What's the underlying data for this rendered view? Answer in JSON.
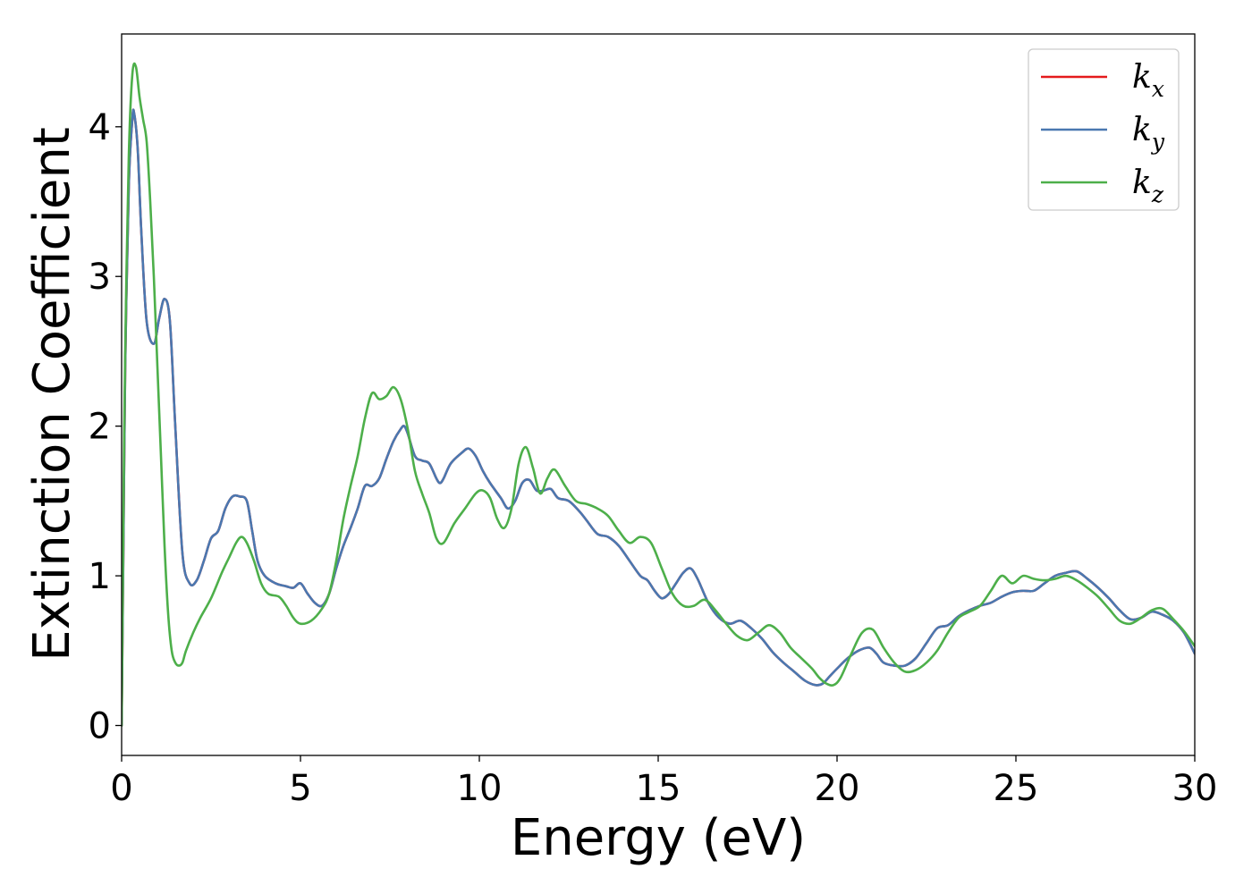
{
  "chart_data": {
    "type": "line",
    "xlabel": "Energy (eV)",
    "ylabel": "Extinction Coefficient",
    "xlim": [
      0,
      30
    ],
    "ylim": [
      -0.2,
      4.62
    ],
    "xticks": [
      0,
      5,
      10,
      15,
      20,
      25,
      30
    ],
    "yticks": [
      0,
      1,
      2,
      3,
      4
    ],
    "xtick_labels": [
      "0",
      "5",
      "10",
      "15",
      "20",
      "25",
      "30"
    ],
    "ytick_labels": [
      "0",
      "1",
      "2",
      "3",
      "4"
    ],
    "grid": false,
    "legend_position": "top-right",
    "series": [
      {
        "name": "k_x",
        "label_base": "k",
        "label_sub": "x",
        "color": "#e41a1c",
        "x": [
          0,
          0.05,
          0.1,
          0.2,
          0.3,
          0.35,
          0.45,
          0.55,
          0.7,
          0.9,
          1.05,
          1.2,
          1.35,
          1.5,
          1.7,
          1.9,
          2.1,
          2.3,
          2.5,
          2.7,
          2.9,
          3.1,
          3.3,
          3.5,
          3.65,
          3.8,
          4.0,
          4.3,
          4.6,
          4.8,
          5.0,
          5.2,
          5.4,
          5.6,
          5.8,
          6.0,
          6.2,
          6.4,
          6.6,
          6.8,
          7.0,
          7.2,
          7.4,
          7.6,
          7.8,
          7.9,
          8.0,
          8.2,
          8.4,
          8.6,
          8.8,
          8.9,
          9.0,
          9.2,
          9.5,
          9.7,
          9.9,
          10.1,
          10.3,
          10.6,
          10.8,
          11.0,
          11.2,
          11.4,
          11.6,
          11.8,
          12.0,
          12.2,
          12.5,
          12.8,
          13.0,
          13.3,
          13.6,
          13.9,
          14.2,
          14.5,
          14.7,
          14.9,
          15.1,
          15.3,
          15.5,
          15.7,
          15.9,
          16.1,
          16.4,
          16.7,
          17.0,
          17.3,
          17.6,
          17.9,
          18.2,
          18.5,
          18.8,
          19.1,
          19.4,
          19.6,
          19.8,
          20.0,
          20.3,
          20.6,
          20.9,
          21.1,
          21.3,
          21.6,
          21.9,
          22.2,
          22.5,
          22.8,
          23.1,
          23.4,
          23.7,
          24.0,
          24.3,
          24.6,
          24.9,
          25.2,
          25.5,
          25.8,
          26.1,
          26.4,
          26.7,
          27.0,
          27.3,
          27.6,
          27.9,
          28.2,
          28.5,
          28.8,
          29.1,
          29.4,
          29.7,
          30.0
        ],
        "y": [
          0,
          1.2,
          2.4,
          3.6,
          4.05,
          4.09,
          3.85,
          3.3,
          2.7,
          2.55,
          2.72,
          2.85,
          2.7,
          2.0,
          1.15,
          0.95,
          0.97,
          1.1,
          1.25,
          1.3,
          1.45,
          1.53,
          1.53,
          1.5,
          1.3,
          1.1,
          1.0,
          0.95,
          0.93,
          0.92,
          0.95,
          0.88,
          0.82,
          0.8,
          0.88,
          1.05,
          1.2,
          1.32,
          1.45,
          1.6,
          1.6,
          1.65,
          1.78,
          1.9,
          1.98,
          2.0,
          1.95,
          1.8,
          1.77,
          1.75,
          1.65,
          1.62,
          1.65,
          1.75,
          1.82,
          1.85,
          1.8,
          1.7,
          1.62,
          1.52,
          1.45,
          1.5,
          1.62,
          1.64,
          1.57,
          1.57,
          1.58,
          1.52,
          1.5,
          1.43,
          1.37,
          1.28,
          1.26,
          1.2,
          1.1,
          1.0,
          0.97,
          0.9,
          0.85,
          0.88,
          0.95,
          1.02,
          1.05,
          0.98,
          0.82,
          0.72,
          0.68,
          0.7,
          0.65,
          0.58,
          0.49,
          0.42,
          0.36,
          0.3,
          0.27,
          0.28,
          0.33,
          0.38,
          0.45,
          0.5,
          0.52,
          0.48,
          0.42,
          0.4,
          0.4,
          0.45,
          0.55,
          0.65,
          0.67,
          0.73,
          0.77,
          0.8,
          0.82,
          0.86,
          0.89,
          0.9,
          0.9,
          0.95,
          1.0,
          1.02,
          1.03,
          0.98,
          0.92,
          0.85,
          0.77,
          0.71,
          0.72,
          0.76,
          0.74,
          0.7,
          0.62,
          0.48
        ]
      },
      {
        "name": "k_y",
        "label_base": "k",
        "label_sub": "y",
        "color": "#4a78b0",
        "x": [
          0,
          0.05,
          0.1,
          0.2,
          0.3,
          0.35,
          0.45,
          0.55,
          0.7,
          0.9,
          1.05,
          1.2,
          1.35,
          1.5,
          1.7,
          1.9,
          2.1,
          2.3,
          2.5,
          2.7,
          2.9,
          3.1,
          3.3,
          3.5,
          3.65,
          3.8,
          4.0,
          4.3,
          4.6,
          4.8,
          5.0,
          5.2,
          5.4,
          5.6,
          5.8,
          6.0,
          6.2,
          6.4,
          6.6,
          6.8,
          7.0,
          7.2,
          7.4,
          7.6,
          7.8,
          7.9,
          8.0,
          8.2,
          8.4,
          8.6,
          8.8,
          8.9,
          9.0,
          9.2,
          9.5,
          9.7,
          9.9,
          10.1,
          10.3,
          10.6,
          10.8,
          11.0,
          11.2,
          11.4,
          11.6,
          11.8,
          12.0,
          12.2,
          12.5,
          12.8,
          13.0,
          13.3,
          13.6,
          13.9,
          14.2,
          14.5,
          14.7,
          14.9,
          15.1,
          15.3,
          15.5,
          15.7,
          15.9,
          16.1,
          16.4,
          16.7,
          17.0,
          17.3,
          17.6,
          17.9,
          18.2,
          18.5,
          18.8,
          19.1,
          19.4,
          19.6,
          19.8,
          20.0,
          20.3,
          20.6,
          20.9,
          21.1,
          21.3,
          21.6,
          21.9,
          22.2,
          22.5,
          22.8,
          23.1,
          23.4,
          23.7,
          24.0,
          24.3,
          24.6,
          24.9,
          25.2,
          25.5,
          25.8,
          26.1,
          26.4,
          26.7,
          27.0,
          27.3,
          27.6,
          27.9,
          28.2,
          28.5,
          28.8,
          29.1,
          29.4,
          29.7,
          30.0
        ],
        "y": [
          0,
          1.2,
          2.4,
          3.6,
          4.05,
          4.09,
          3.85,
          3.3,
          2.7,
          2.55,
          2.72,
          2.85,
          2.7,
          2.0,
          1.15,
          0.95,
          0.97,
          1.1,
          1.25,
          1.3,
          1.45,
          1.53,
          1.53,
          1.5,
          1.3,
          1.1,
          1.0,
          0.95,
          0.93,
          0.92,
          0.95,
          0.88,
          0.82,
          0.8,
          0.88,
          1.05,
          1.2,
          1.32,
          1.45,
          1.6,
          1.6,
          1.65,
          1.78,
          1.9,
          1.98,
          2.0,
          1.95,
          1.8,
          1.77,
          1.75,
          1.65,
          1.62,
          1.65,
          1.75,
          1.82,
          1.85,
          1.8,
          1.7,
          1.62,
          1.52,
          1.45,
          1.5,
          1.62,
          1.64,
          1.57,
          1.57,
          1.58,
          1.52,
          1.5,
          1.43,
          1.37,
          1.28,
          1.26,
          1.2,
          1.1,
          1.0,
          0.97,
          0.9,
          0.85,
          0.88,
          0.95,
          1.02,
          1.05,
          0.98,
          0.82,
          0.72,
          0.68,
          0.7,
          0.65,
          0.58,
          0.49,
          0.42,
          0.36,
          0.3,
          0.27,
          0.28,
          0.33,
          0.38,
          0.45,
          0.5,
          0.52,
          0.48,
          0.42,
          0.4,
          0.4,
          0.45,
          0.55,
          0.65,
          0.67,
          0.73,
          0.77,
          0.8,
          0.82,
          0.86,
          0.89,
          0.9,
          0.9,
          0.95,
          1.0,
          1.02,
          1.03,
          0.98,
          0.92,
          0.85,
          0.77,
          0.71,
          0.72,
          0.76,
          0.74,
          0.7,
          0.62,
          0.48
        ]
      },
      {
        "name": "k_z",
        "label_base": "k",
        "label_sub": "z",
        "color": "#4daf4a",
        "x": [
          0,
          0.05,
          0.1,
          0.2,
          0.3,
          0.4,
          0.5,
          0.6,
          0.7,
          0.8,
          0.9,
          1.0,
          1.1,
          1.2,
          1.3,
          1.4,
          1.5,
          1.6,
          1.7,
          1.8,
          2.0,
          2.2,
          2.5,
          2.8,
          3.0,
          3.2,
          3.35,
          3.5,
          3.7,
          3.9,
          4.1,
          4.4,
          4.6,
          4.8,
          5.0,
          5.3,
          5.6,
          5.8,
          6.0,
          6.2,
          6.4,
          6.6,
          6.8,
          7.0,
          7.2,
          7.4,
          7.6,
          7.8,
          8.0,
          8.2,
          8.4,
          8.6,
          8.8,
          9.0,
          9.3,
          9.6,
          9.9,
          10.1,
          10.3,
          10.5,
          10.7,
          10.9,
          11.1,
          11.3,
          11.5,
          11.7,
          11.9,
          12.1,
          12.4,
          12.7,
          13.0,
          13.3,
          13.6,
          13.9,
          14.2,
          14.5,
          14.8,
          15.1,
          15.4,
          15.7,
          16.0,
          16.3,
          16.6,
          16.9,
          17.2,
          17.5,
          17.8,
          18.1,
          18.4,
          18.7,
          19.0,
          19.3,
          19.5,
          19.7,
          19.9,
          20.1,
          20.4,
          20.7,
          21.0,
          21.3,
          21.6,
          21.9,
          22.2,
          22.5,
          22.8,
          23.1,
          23.4,
          23.7,
          24.0,
          24.3,
          24.6,
          24.9,
          25.2,
          25.5,
          25.8,
          26.1,
          26.4,
          26.7,
          27.0,
          27.3,
          27.6,
          27.9,
          28.2,
          28.5,
          28.8,
          29.1,
          29.4,
          29.7,
          30.0
        ],
        "y": [
          0,
          1.4,
          2.5,
          3.8,
          4.35,
          4.4,
          4.2,
          4.05,
          3.9,
          3.5,
          3.0,
          2.4,
          1.8,
          1.2,
          0.75,
          0.5,
          0.42,
          0.4,
          0.42,
          0.5,
          0.62,
          0.72,
          0.85,
          1.02,
          1.12,
          1.22,
          1.26,
          1.22,
          1.1,
          0.95,
          0.88,
          0.86,
          0.8,
          0.72,
          0.68,
          0.7,
          0.78,
          0.88,
          1.1,
          1.38,
          1.6,
          1.8,
          2.05,
          2.22,
          2.18,
          2.2,
          2.26,
          2.18,
          1.98,
          1.7,
          1.55,
          1.42,
          1.25,
          1.22,
          1.35,
          1.45,
          1.55,
          1.57,
          1.52,
          1.38,
          1.32,
          1.45,
          1.75,
          1.86,
          1.72,
          1.55,
          1.65,
          1.71,
          1.6,
          1.5,
          1.48,
          1.45,
          1.4,
          1.3,
          1.22,
          1.26,
          1.22,
          1.05,
          0.88,
          0.8,
          0.8,
          0.84,
          0.77,
          0.68,
          0.6,
          0.57,
          0.62,
          0.67,
          0.62,
          0.52,
          0.45,
          0.38,
          0.32,
          0.28,
          0.27,
          0.32,
          0.48,
          0.62,
          0.64,
          0.52,
          0.42,
          0.36,
          0.37,
          0.42,
          0.5,
          0.62,
          0.72,
          0.76,
          0.8,
          0.9,
          1.0,
          0.95,
          1.0,
          0.98,
          0.97,
          0.98,
          1.0,
          0.97,
          0.92,
          0.86,
          0.78,
          0.7,
          0.68,
          0.72,
          0.77,
          0.78,
          0.71,
          0.63,
          0.53
        ]
      }
    ]
  }
}
